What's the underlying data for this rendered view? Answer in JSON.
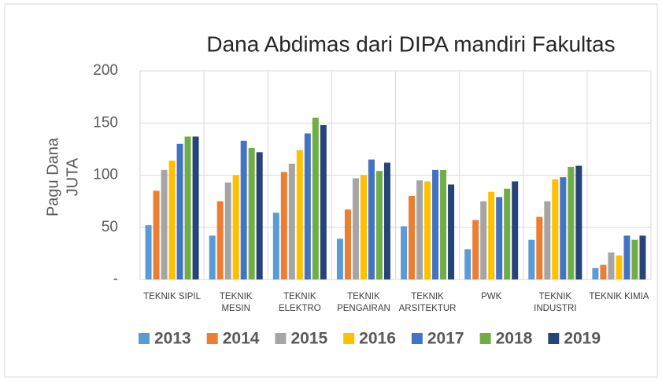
{
  "chart_data": {
    "type": "bar",
    "title": "Dana Abdimas dari DIPA mandiri Fakultas",
    "ylabel": [
      "Pagu Dana",
      "JUTA"
    ],
    "categories": [
      "TEKNIK SIPIL",
      "TEKNIK MESIN",
      "TEKNIK ELEKTRO",
      "TEKNIK PENGAIRAN",
      "TEKNIK ARSITEKTUR",
      "PWK",
      "TEKNIK INDUSTRI",
      "TEKNIK KIMIA"
    ],
    "series": [
      {
        "name": "2013",
        "color": "#5b9bd5",
        "values": [
          52,
          42,
          64,
          39,
          51,
          29,
          38,
          11
        ]
      },
      {
        "name": "2014",
        "color": "#ed7d31",
        "values": [
          85,
          75,
          103,
          67,
          80,
          57,
          60,
          14
        ]
      },
      {
        "name": "2015",
        "color": "#a5a5a5",
        "values": [
          105,
          93,
          111,
          97,
          95,
          75,
          75,
          26
        ]
      },
      {
        "name": "2016",
        "color": "#ffc000",
        "values": [
          114,
          100,
          124,
          100,
          94,
          84,
          96,
          23
        ]
      },
      {
        "name": "2017",
        "color": "#4472c4",
        "values": [
          130,
          133,
          140,
          115,
          105,
          79,
          98,
          42
        ]
      },
      {
        "name": "2018",
        "color": "#70ad47",
        "values": [
          137,
          126,
          155,
          104,
          105,
          87,
          108,
          38
        ]
      },
      {
        "name": "2019",
        "color": "#264478",
        "values": [
          137,
          122,
          148,
          112,
          91,
          94,
          109,
          42
        ]
      }
    ],
    "ylim": [
      0,
      200
    ],
    "yticks": [
      {
        "value": 0,
        "label": "-"
      },
      50,
      100,
      150,
      200
    ],
    "grid": true,
    "legend": "bottom"
  }
}
